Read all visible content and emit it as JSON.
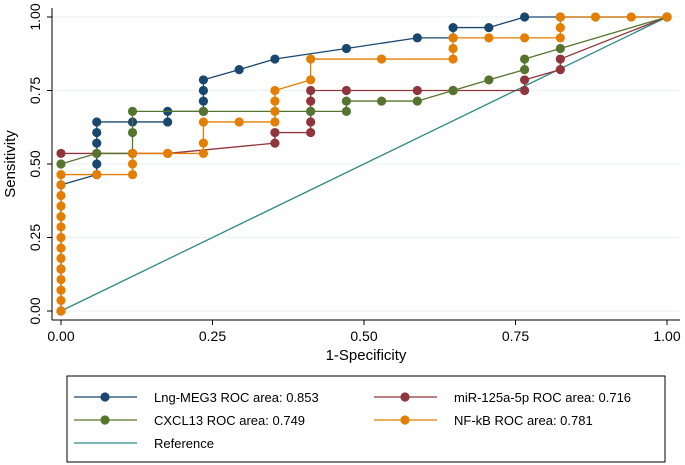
{
  "chart_data": {
    "type": "line",
    "title": "",
    "xlabel": "1-Specificity",
    "ylabel": "Sensitivity",
    "xlim": [
      0,
      1
    ],
    "ylim": [
      0,
      1
    ],
    "xticks": [
      {
        "value": 0,
        "label": "0.00"
      },
      {
        "value": 0.25,
        "label": "0.25"
      },
      {
        "value": 0.5,
        "label": "0.50"
      },
      {
        "value": 0.75,
        "label": "0.75"
      },
      {
        "value": 1,
        "label": "1.00"
      }
    ],
    "yticks": [
      {
        "value": 0,
        "label": "0.00"
      },
      {
        "value": 0.25,
        "label": "0.25"
      },
      {
        "value": 0.5,
        "label": "0.50"
      },
      {
        "value": 0.75,
        "label": "0.75"
      },
      {
        "value": 1,
        "label": "1.00"
      }
    ],
    "grid": true,
    "legend": "bottom",
    "series": [
      {
        "name": "Lng-MEG3 ROC area: 0.853",
        "color": "#1a476f",
        "points": [
          [
            0,
            0
          ],
          [
            0,
            0.143
          ],
          [
            0,
            0.429
          ],
          [
            0.059,
            0.464
          ],
          [
            0.059,
            0.5
          ],
          [
            0.059,
            0.571
          ],
          [
            0.059,
            0.607
          ],
          [
            0.059,
            0.643
          ],
          [
            0.118,
            0.643
          ],
          [
            0.176,
            0.643
          ],
          [
            0.176,
            0.679
          ],
          [
            0.235,
            0.679
          ],
          [
            0.235,
            0.714
          ],
          [
            0.235,
            0.75
          ],
          [
            0.235,
            0.786
          ],
          [
            0.294,
            0.821
          ],
          [
            0.353,
            0.857
          ],
          [
            0.471,
            0.893
          ],
          [
            0.588,
            0.929
          ],
          [
            0.647,
            0.929
          ],
          [
            0.647,
            0.964
          ],
          [
            0.706,
            0.964
          ],
          [
            0.765,
            1
          ],
          [
            0.824,
            1
          ],
          [
            1,
            1
          ]
        ]
      },
      {
        "name": "miR-125a-5p ROC area: 0.716",
        "color": "#90353b",
        "points": [
          [
            0,
            0.536
          ],
          [
            0.059,
            0.536
          ],
          [
            0.118,
            0.536
          ],
          [
            0.176,
            0.536
          ],
          [
            0.353,
            0.571
          ],
          [
            0.353,
            0.607
          ],
          [
            0.412,
            0.607
          ],
          [
            0.412,
            0.643
          ],
          [
            0.412,
            0.679
          ],
          [
            0.412,
            0.714
          ],
          [
            0.412,
            0.75
          ],
          [
            0.471,
            0.75
          ],
          [
            0.588,
            0.75
          ],
          [
            0.647,
            0.75
          ],
          [
            0.765,
            0.75
          ],
          [
            0.765,
            0.786
          ],
          [
            0.824,
            0.821
          ],
          [
            0.824,
            0.857
          ],
          [
            1,
            1
          ]
        ]
      },
      {
        "name": "CXCL13 ROC area: 0.749",
        "color": "#55752f",
        "points": [
          [
            0,
            0.5
          ],
          [
            0.059,
            0.536
          ],
          [
            0.118,
            0.536
          ],
          [
            0.118,
            0.607
          ],
          [
            0.118,
            0.679
          ],
          [
            0.235,
            0.679
          ],
          [
            0.412,
            0.679
          ],
          [
            0.471,
            0.679
          ],
          [
            0.471,
            0.714
          ],
          [
            0.529,
            0.714
          ],
          [
            0.588,
            0.714
          ],
          [
            0.647,
            0.75
          ],
          [
            0.706,
            0.786
          ],
          [
            0.765,
            0.821
          ],
          [
            0.765,
            0.857
          ],
          [
            0.824,
            0.893
          ],
          [
            1,
            1
          ]
        ]
      },
      {
        "name": "NF-kB ROC area: 0.781",
        "color": "#e37e00",
        "points": [
          [
            0,
            0
          ],
          [
            0,
            0.036
          ],
          [
            0,
            0.071
          ],
          [
            0,
            0.107
          ],
          [
            0,
            0.143
          ],
          [
            0,
            0.179
          ],
          [
            0,
            0.214
          ],
          [
            0,
            0.25
          ],
          [
            0,
            0.286
          ],
          [
            0,
            0.321
          ],
          [
            0,
            0.357
          ],
          [
            0,
            0.393
          ],
          [
            0,
            0.429
          ],
          [
            0,
            0.464
          ],
          [
            0.059,
            0.464
          ],
          [
            0.118,
            0.464
          ],
          [
            0.118,
            0.5
          ],
          [
            0.118,
            0.536
          ],
          [
            0.176,
            0.536
          ],
          [
            0.235,
            0.536
          ],
          [
            0.235,
            0.571
          ],
          [
            0.235,
            0.643
          ],
          [
            0.294,
            0.643
          ],
          [
            0.353,
            0.643
          ],
          [
            0.353,
            0.679
          ],
          [
            0.353,
            0.714
          ],
          [
            0.353,
            0.75
          ],
          [
            0.412,
            0.786
          ],
          [
            0.412,
            0.857
          ],
          [
            0.529,
            0.857
          ],
          [
            0.647,
            0.857
          ],
          [
            0.647,
            0.893
          ],
          [
            0.647,
            0.929
          ],
          [
            0.706,
            0.929
          ],
          [
            0.765,
            0.929
          ],
          [
            0.824,
            0.929
          ],
          [
            0.824,
            0.964
          ],
          [
            0.824,
            1
          ],
          [
            0.882,
            1
          ],
          [
            0.941,
            1
          ],
          [
            1,
            1
          ]
        ]
      }
    ],
    "reference": {
      "name": "Reference",
      "color": "#2d8a84",
      "points": [
        [
          0,
          0
        ],
        [
          1,
          1
        ]
      ]
    }
  }
}
